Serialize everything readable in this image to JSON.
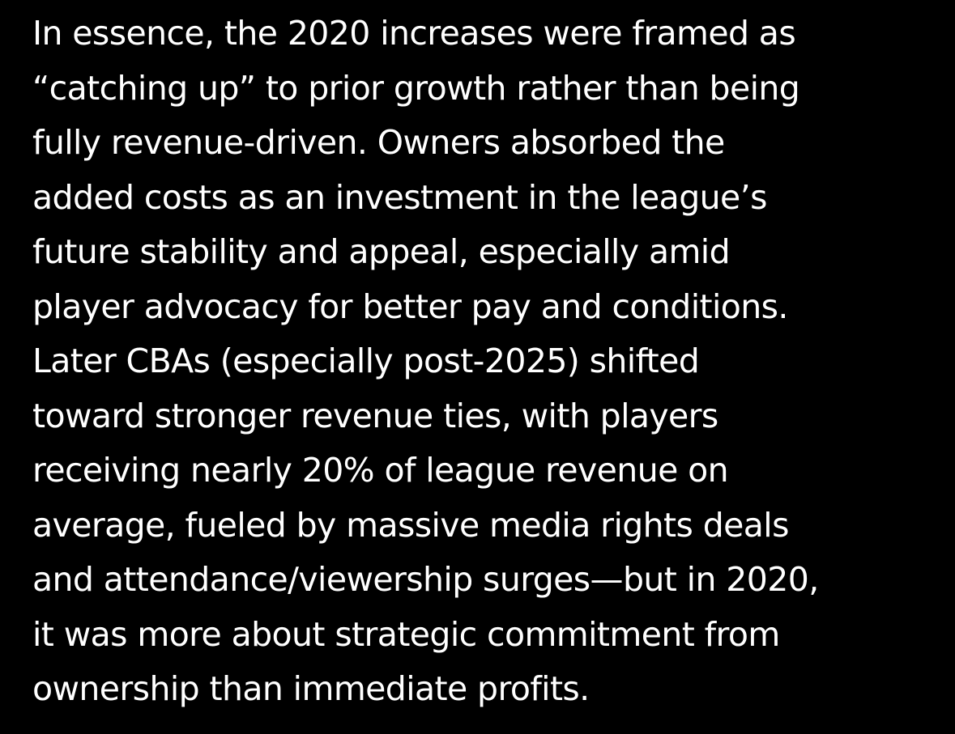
{
  "message": {
    "lines": [
      "In essence, the 2020 increases were framed as",
      "“catching up” to prior growth rather than being",
      "fully revenue-driven. Owners absorbed the",
      "added costs as an investment in the league’s",
      "future stability and appeal, especially amid",
      "player advocacy for better pay and conditions.",
      "Later CBAs (especially post-2025) shifted",
      "toward stronger revenue ties, with players",
      "receiving nearly 20% of league revenue on",
      "average, fueled by massive media rights deals",
      "and attendance/viewership surges—but in 2020,",
      "it was more about strategic commitment from",
      "ownership than immediate profits."
    ]
  },
  "colors": {
    "background": "#000000",
    "text": "#ffffff"
  }
}
